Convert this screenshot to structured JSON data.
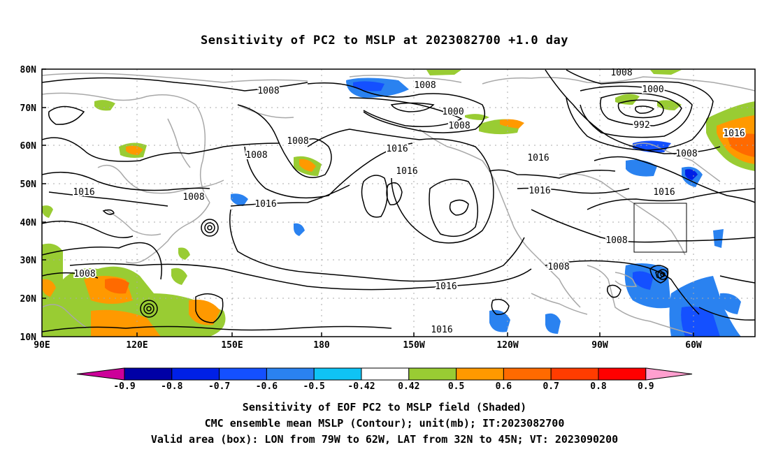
{
  "title": "Sensitivity of PC2 to MSLP at 2023082700 +1.0 day",
  "lat_labels": [
    "80N",
    "70N",
    "60N",
    "50N",
    "40N",
    "30N",
    "20N",
    "10N"
  ],
  "lon_labels": [
    "90E",
    "120E",
    "150E",
    "180",
    "150W",
    "120W",
    "90W",
    "60W"
  ],
  "contour_labels": [
    "1008",
    "1008",
    "1008",
    "1000",
    "1008",
    "1016",
    "1016",
    "1008",
    "1008",
    "1016",
    "1008",
    "1016",
    "1016",
    "1016",
    "1000",
    "992",
    "1008",
    "1016",
    "1016",
    "1008",
    "1008",
    "1016",
    "1008",
    "1016"
  ],
  "colorbar": {
    "ticks": [
      "-0.9",
      "-0.8",
      "-0.7",
      "-0.6",
      "-0.5",
      "-0.42",
      "0.42",
      "0.5",
      "0.6",
      "0.7",
      "0.8",
      "0.9"
    ],
    "colors": [
      "#cc0099",
      "#0000a6",
      "#0020e6",
      "#1450ff",
      "#2a82f0",
      "#0fc3f5",
      "#ffffff",
      "#99cc33",
      "#ff9900",
      "#ff6a00",
      "#ff3c00",
      "#ff0000",
      "#ff9fcf"
    ]
  },
  "footer": [
    "Sensitivity of EOF PC2 to MSLP field (Shaded)",
    "CMC ensemble mean MSLP (Contour); unit(mb); IT:2023082700",
    "Valid area (box): LON from 79W to 62W, LAT from 32N to 45N; VT: 2023090200"
  ]
}
